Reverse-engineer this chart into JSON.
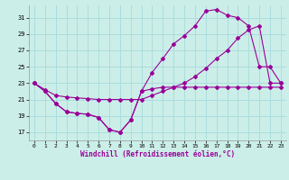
{
  "xlabel": "Windchill (Refroidissement éolien,°C)",
  "bg_color": "#cceee8",
  "grid_color": "#aadddd",
  "line_color": "#990099",
  "xlim": [
    -0.5,
    23.5
  ],
  "ylim": [
    16,
    32.5
  ],
  "yticks": [
    17,
    19,
    21,
    23,
    25,
    27,
    29,
    31
  ],
  "xticks": [
    0,
    1,
    2,
    3,
    4,
    5,
    6,
    7,
    8,
    9,
    10,
    11,
    12,
    13,
    14,
    15,
    16,
    17,
    18,
    19,
    20,
    21,
    22,
    23
  ],
  "line1_x": [
    0,
    1,
    2,
    3,
    4,
    5,
    6,
    7,
    8,
    9,
    10,
    11,
    12,
    13,
    14,
    15,
    16,
    17,
    18,
    19,
    20,
    21,
    22,
    23
  ],
  "line1_y": [
    23.0,
    22.2,
    21.5,
    21.3,
    21.2,
    21.1,
    21.0,
    21.0,
    21.0,
    21.0,
    21.0,
    21.5,
    22.0,
    22.5,
    23.0,
    23.8,
    24.8,
    26.0,
    27.0,
    28.5,
    29.5,
    30.0,
    23.0,
    23.0
  ],
  "line2_x": [
    0,
    1,
    2,
    3,
    4,
    5,
    6,
    7,
    8,
    9,
    10,
    11,
    12,
    13,
    14,
    15,
    16,
    17,
    18,
    19,
    20,
    21,
    22,
    23
  ],
  "line2_y": [
    23.0,
    22.0,
    20.5,
    19.5,
    19.3,
    19.2,
    18.8,
    17.3,
    17.0,
    18.5,
    22.0,
    24.3,
    26.0,
    27.8,
    28.8,
    30.0,
    31.8,
    32.0,
    31.3,
    31.0,
    30.0,
    25.0,
    25.0,
    23.0
  ],
  "line3_x": [
    0,
    1,
    2,
    3,
    4,
    5,
    6,
    7,
    8,
    9,
    10,
    11,
    12,
    13,
    14,
    15,
    16,
    17,
    18,
    19,
    20,
    21,
    22,
    23
  ],
  "line3_y": [
    23.0,
    22.0,
    20.5,
    19.5,
    19.3,
    19.2,
    18.8,
    17.3,
    17.0,
    18.5,
    22.0,
    22.3,
    22.5,
    22.5,
    22.5,
    22.5,
    22.5,
    22.5,
    22.5,
    22.5,
    22.5,
    22.5,
    22.5,
    22.5
  ]
}
